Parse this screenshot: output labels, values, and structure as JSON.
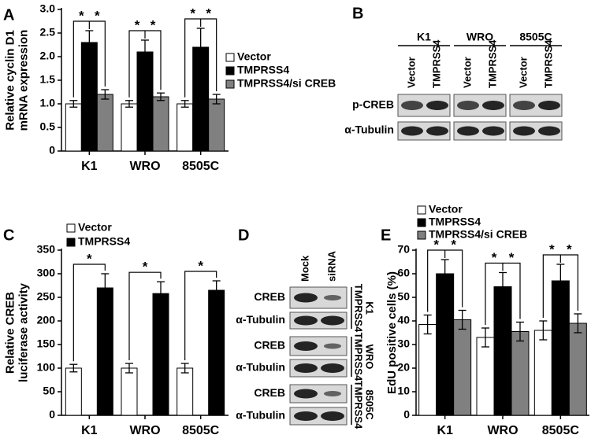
{
  "chart_data": [
    {
      "type": "bar",
      "panel": "A",
      "y_label": [
        "Relative cyclin D1",
        "mRNA expression"
      ],
      "categories": [
        "K1",
        "WRO",
        "8505C"
      ],
      "series": [
        {
          "name": "Vector",
          "color": "#ffffff",
          "values": [
            1.0,
            1.0,
            1.0
          ],
          "errors": [
            0.07,
            0.07,
            0.07
          ]
        },
        {
          "name": "TMPRSS4",
          "color": "#000000",
          "values": [
            2.3,
            2.1,
            2.2
          ],
          "errors": [
            0.25,
            0.25,
            0.4
          ]
        },
        {
          "name": "TMPRSS4/si CREB",
          "color": "#808080",
          "values": [
            1.2,
            1.15,
            1.1
          ],
          "errors": [
            0.1,
            0.08,
            0.1
          ]
        }
      ],
      "ylim": [
        0,
        3
      ],
      "yticks": [
        0,
        0.5,
        {
          "value": 1,
          "label": "1.0"
        },
        1.5,
        {
          "value": 2,
          "label": "2.0"
        },
        2.5,
        {
          "value": 3,
          "label": "3.0"
        }
      ],
      "significance_marker": "*",
      "legend": "right"
    },
    {
      "type": "bar",
      "panel": "C",
      "y_label": [
        "Relative CREB",
        "luciferase activity"
      ],
      "categories": [
        "K1",
        "WRO",
        "8505C"
      ],
      "series": [
        {
          "name": "Vector",
          "color": "#ffffff",
          "values": [
            100,
            100,
            100
          ],
          "errors": [
            8,
            10,
            10
          ]
        },
        {
          "name": "TMPRSS4",
          "color": "#000000",
          "values": [
            270,
            258,
            265
          ],
          "errors": [
            30,
            25,
            20
          ]
        }
      ],
      "ylim": [
        0,
        350
      ],
      "yticks": [
        0,
        50,
        100,
        150,
        200,
        250,
        300,
        350
      ],
      "significance_marker": "*",
      "legend": "top"
    },
    {
      "type": "bar",
      "panel": "E",
      "y_label": [
        "EdU positive cells (%)"
      ],
      "categories": [
        "K1",
        "WRO",
        "8505C"
      ],
      "series": [
        {
          "name": "Vector",
          "color": "#ffffff",
          "values": [
            38.5,
            33,
            36
          ],
          "errors": [
            4,
            4,
            4
          ]
        },
        {
          "name": "TMPRSS4",
          "color": "#000000",
          "values": [
            60,
            54.5,
            57
          ],
          "errors": [
            6,
            6,
            7
          ]
        },
        {
          "name": "TMPRSS4/si CREB",
          "color": "#808080",
          "values": [
            40.5,
            35.5,
            39
          ],
          "errors": [
            4,
            4,
            4
          ]
        }
      ],
      "ylim": [
        0,
        70
      ],
      "yticks": [
        0,
        10,
        20,
        30,
        40,
        50,
        60,
        70
      ],
      "significance_marker": "*",
      "legend": "top"
    }
  ],
  "blot_b": {
    "panel": "B",
    "groups": [
      "K1",
      "WRO",
      "8505C"
    ],
    "lanes": [
      "Vector",
      "TMPRSS4"
    ],
    "rows": [
      "p-CREB",
      "α-Tubulin"
    ]
  },
  "blot_d": {
    "panel": "D",
    "lanes": [
      "Mock",
      "siRNA"
    ],
    "rows": [
      "CREB",
      "α-Tubulin"
    ],
    "groups": [
      "K1",
      "WRO",
      "8505C"
    ],
    "sublabel": "TMPRSS4"
  }
}
